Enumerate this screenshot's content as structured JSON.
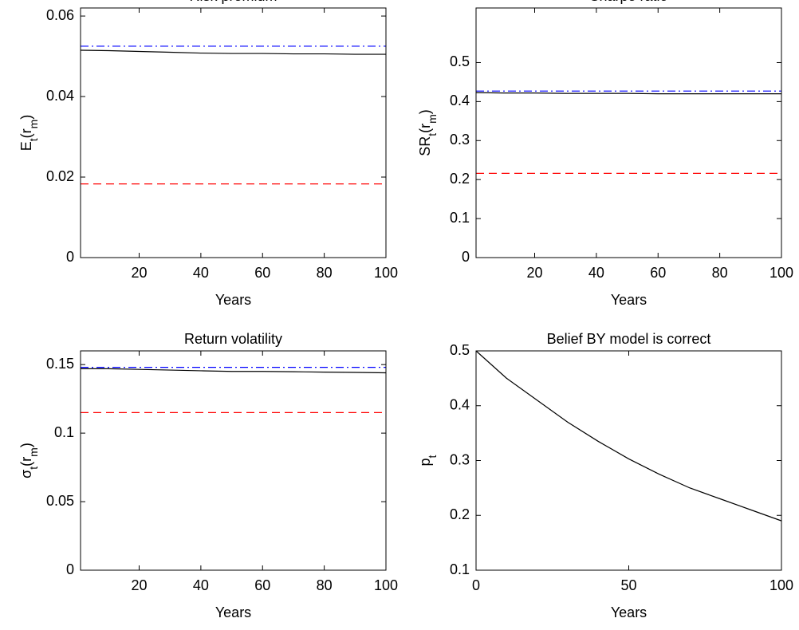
{
  "chart_data": [
    {
      "type": "line",
      "title": "Risk premium",
      "xlabel": "Years",
      "ylabel": [
        {
          "text": "E"
        },
        {
          "text": "t",
          "sub": true
        },
        {
          "text": "(r"
        },
        {
          "text": "m",
          "sub": true
        },
        {
          "text": ")"
        }
      ],
      "xlim": [
        1,
        100
      ],
      "xticks": [
        20,
        40,
        60,
        80,
        100
      ],
      "ylim": [
        0,
        0.062
      ],
      "yticks": [
        0,
        0.02,
        0.04,
        0.06
      ],
      "x": [
        1,
        10,
        20,
        30,
        40,
        50,
        60,
        70,
        80,
        90,
        100
      ],
      "series": [
        {
          "color": "#0000ff",
          "style": "dashdot",
          "values": [
            0.0525,
            0.0525,
            0.0525,
            0.0525,
            0.0525,
            0.0525,
            0.0525,
            0.0525,
            0.0525,
            0.0525,
            0.0525
          ]
        },
        {
          "color": "#ff0000",
          "style": "dashed",
          "values": [
            0.0183,
            0.0183,
            0.0183,
            0.0183,
            0.0183,
            0.0183,
            0.0183,
            0.0183,
            0.0183,
            0.0183,
            0.0183
          ]
        },
        {
          "color": "#000000",
          "style": "solid",
          "values": [
            0.0515,
            0.0514,
            0.0512,
            0.051,
            0.0508,
            0.0507,
            0.0507,
            0.0506,
            0.0506,
            0.0505,
            0.0505
          ]
        }
      ]
    },
    {
      "type": "line",
      "title": "Sharpe ratio",
      "xlabel": "Years",
      "ylabel": [
        {
          "text": "SR"
        },
        {
          "text": "t",
          "sub": true
        },
        {
          "text": "(r"
        },
        {
          "text": "m",
          "sub": true
        },
        {
          "text": ")"
        }
      ],
      "xlim": [
        1,
        100
      ],
      "xticks": [
        20,
        40,
        60,
        80,
        100
      ],
      "ylim": [
        0,
        0.64
      ],
      "yticks": [
        0,
        0.1,
        0.2,
        0.3,
        0.4,
        0.5
      ],
      "x": [
        1,
        10,
        20,
        30,
        40,
        50,
        60,
        70,
        80,
        90,
        100
      ],
      "series": [
        {
          "color": "#0000ff",
          "style": "dashdot",
          "values": [
            0.427,
            0.427,
            0.427,
            0.427,
            0.427,
            0.427,
            0.427,
            0.427,
            0.427,
            0.427,
            0.427
          ]
        },
        {
          "color": "#ff0000",
          "style": "dashed",
          "values": [
            0.216,
            0.216,
            0.216,
            0.216,
            0.216,
            0.216,
            0.216,
            0.216,
            0.216,
            0.216,
            0.216
          ]
        },
        {
          "color": "#000000",
          "style": "solid",
          "values": [
            0.423,
            0.422,
            0.422,
            0.421,
            0.421,
            0.421,
            0.42,
            0.42,
            0.42,
            0.42,
            0.42
          ]
        }
      ]
    },
    {
      "type": "line",
      "title": "Return volatility",
      "xlabel": "Years",
      "ylabel": [
        {
          "text": "σ"
        },
        {
          "text": "t",
          "sub": true
        },
        {
          "text": "(r"
        },
        {
          "text": "m",
          "sub": true
        },
        {
          "text": ")"
        }
      ],
      "xlim": [
        1,
        100
      ],
      "xticks": [
        20,
        40,
        60,
        80,
        100
      ],
      "ylim": [
        0,
        0.16
      ],
      "yticks": [
        0,
        0.05,
        0.1,
        0.15
      ],
      "x": [
        1,
        10,
        20,
        30,
        40,
        50,
        60,
        70,
        80,
        90,
        100
      ],
      "series": [
        {
          "color": "#0000ff",
          "style": "dashdot",
          "values": [
            0.148,
            0.148,
            0.148,
            0.148,
            0.148,
            0.148,
            0.148,
            0.148,
            0.148,
            0.148,
            0.148
          ]
        },
        {
          "color": "#ff0000",
          "style": "dashed",
          "values": [
            0.115,
            0.115,
            0.115,
            0.115,
            0.115,
            0.115,
            0.115,
            0.115,
            0.115,
            0.115,
            0.115
          ]
        },
        {
          "color": "#000000",
          "style": "solid",
          "values": [
            0.147,
            0.147,
            0.1465,
            0.146,
            0.1455,
            0.145,
            0.145,
            0.1448,
            0.1445,
            0.1443,
            0.144
          ]
        }
      ]
    },
    {
      "type": "line",
      "title": "Belief BY model is correct",
      "xlabel": "Years",
      "ylabel": [
        {
          "text": "p"
        },
        {
          "text": "t",
          "sub": true
        }
      ],
      "xlim": [
        0,
        100
      ],
      "xticks": [
        0,
        50,
        100
      ],
      "ylim": [
        0.1,
        0.5
      ],
      "yticks": [
        0.1,
        0.2,
        0.3,
        0.4,
        0.5
      ],
      "x": [
        0,
        10,
        20,
        30,
        40,
        50,
        60,
        70,
        80,
        90,
        100
      ],
      "series": [
        {
          "color": "#000000",
          "style": "solid",
          "values": [
            0.5,
            0.45,
            0.41,
            0.37,
            0.335,
            0.303,
            0.275,
            0.25,
            0.23,
            0.21,
            0.19
          ]
        }
      ]
    }
  ]
}
